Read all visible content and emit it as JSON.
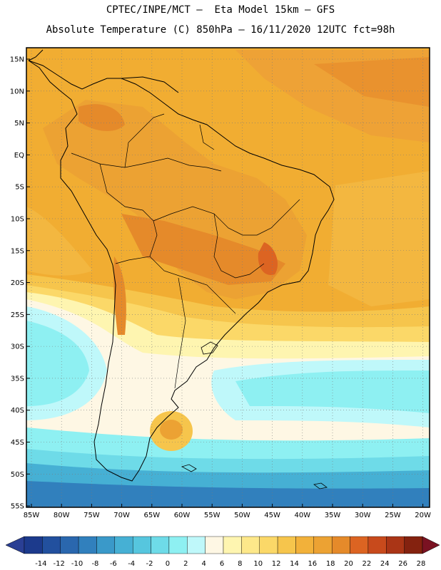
{
  "header": {
    "line1": "CPTEC/INPE/MCT –  Eta Model 15km – GFS",
    "line2": "Absolute Temperature (C) 850hPa – 16/11/2020 12UTC fct=98h"
  },
  "map": {
    "lat_labels": [
      "15N",
      "10N",
      "5N",
      "EQ",
      "5S",
      "10S",
      "15S",
      "20S",
      "25S",
      "30S",
      "35S",
      "40S",
      "45S",
      "50S",
      "55S"
    ],
    "lon_labels": [
      "85W",
      "80W",
      "75W",
      "70W",
      "65W",
      "60W",
      "55W",
      "50W",
      "45W",
      "40W",
      "35W",
      "30W",
      "25W",
      "20W"
    ],
    "lat_range": [
      15,
      -57
    ],
    "lon_range": [
      -85,
      -20
    ]
  },
  "colorbar": {
    "labels": [
      "-14",
      "-12",
      "-10",
      "-8",
      "-6",
      "-4",
      "-2",
      "0",
      "2",
      "4",
      "6",
      "8",
      "10",
      "12",
      "14",
      "16",
      "18",
      "20",
      "22",
      "24",
      "26",
      "28"
    ],
    "colors": [
      "#1c3a8c",
      "#22509e",
      "#2a67ae",
      "#3180bd",
      "#3a99c9",
      "#46b0d4",
      "#56c6de",
      "#6edbe8",
      "#8ef0f2",
      "#bff8fa",
      "#fef7e4",
      "#fef5b0",
      "#fde88a",
      "#fbd868",
      "#f6c54c",
      "#f2b13a",
      "#eca233",
      "#e58a2a",
      "#dc6422",
      "#c84a1c",
      "#aa3516",
      "#84220f"
    ],
    "under_color": "#2a3f94",
    "over_color": "#7a1222"
  }
}
